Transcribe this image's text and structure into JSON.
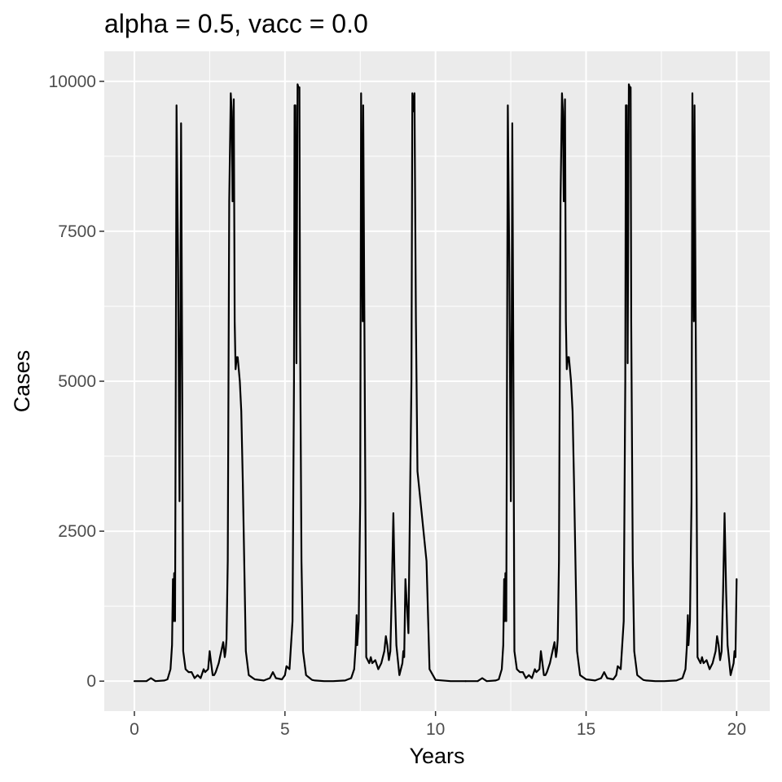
{
  "chart_data": {
    "type": "line",
    "title": "alpha = 0.5, vacc = 0.0",
    "xlabel": "Years",
    "ylabel": "Cases",
    "xlim": [
      -1,
      21.1
    ],
    "ylim": [
      -500,
      10500
    ],
    "x_ticks": [
      0,
      5,
      10,
      15,
      20
    ],
    "x_tick_labels": [
      "0",
      "5",
      "10",
      "15",
      "20"
    ],
    "y_ticks": [
      0,
      2500,
      5000,
      7500,
      10000
    ],
    "y_tick_labels": [
      "0",
      "2500",
      "5000",
      "7500",
      "10000"
    ],
    "grid": true,
    "legend": "none",
    "colors": {
      "panel": "#ebebeb",
      "grid": "#ffffff",
      "line": "#000000",
      "tick": "#333333"
    },
    "series": [
      {
        "x": [
          0.0,
          0.4,
          0.55,
          0.7,
          1.0,
          1.1,
          1.2,
          1.25,
          1.28,
          1.3,
          1.32,
          1.35,
          1.38,
          1.4,
          1.45,
          1.5,
          1.53,
          1.55,
          1.58,
          1.62,
          1.7,
          1.8,
          1.9,
          2.0,
          2.1,
          2.2,
          2.3,
          2.35,
          2.45,
          2.5,
          2.55,
          2.6,
          2.65,
          2.7,
          2.8,
          2.95,
          3.0,
          3.03,
          3.06,
          3.1,
          3.15,
          3.2,
          3.23,
          3.26,
          3.3,
          3.33,
          3.36,
          3.4,
          3.43,
          3.5,
          3.55,
          3.6,
          3.7,
          3.8,
          4.0,
          4.3,
          4.5,
          4.6,
          4.7,
          4.9,
          5.0,
          5.05,
          5.15,
          5.25,
          5.3,
          5.32,
          5.35,
          5.38,
          5.42,
          5.45,
          5.48,
          5.5,
          5.55,
          5.6,
          5.7,
          5.9,
          6.0,
          6.3,
          6.6,
          7.0,
          7.2,
          7.3,
          7.35,
          7.38,
          7.4,
          7.45,
          7.5,
          7.53,
          7.55,
          7.58,
          7.6,
          7.7,
          7.8,
          7.85,
          7.9,
          8.0,
          8.1,
          8.2,
          8.3,
          8.35,
          8.4,
          8.45,
          8.5,
          8.55,
          8.6,
          8.65,
          8.7,
          8.8,
          8.9,
          8.93,
          8.96,
          9.0,
          9.1,
          9.2,
          9.23,
          9.27,
          9.3,
          9.35,
          9.4,
          9.5,
          9.6,
          9.7,
          9.8,
          10.0,
          10.5,
          11.0
        ],
        "y": [
          0,
          0,
          50,
          0,
          10,
          30,
          200,
          600,
          1700,
          1000,
          1800,
          1000,
          6000,
          9600,
          7000,
          3000,
          6000,
          9300,
          6000,
          500,
          200,
          150,
          150,
          50,
          100,
          50,
          200,
          150,
          200,
          500,
          300,
          100,
          100,
          150,
          300,
          650,
          400,
          500,
          700,
          2000,
          8000,
          9800,
          9500,
          8000,
          9700,
          6000,
          5200,
          5400,
          5400,
          5000,
          4500,
          3300,
          500,
          100,
          30,
          10,
          50,
          150,
          50,
          30,
          100,
          250,
          200,
          1000,
          5000,
          9600,
          9600,
          5300,
          9950,
          9900,
          9900,
          6000,
          2000,
          500,
          100,
          20,
          10,
          0,
          0,
          10,
          50,
          200,
          600,
          1100,
          600,
          1000,
          3000,
          9800,
          8000,
          6000,
          9600,
          400,
          300,
          400,
          300,
          350,
          200,
          300,
          500,
          750,
          600,
          350,
          500,
          1500,
          2800,
          1500,
          600,
          100,
          300,
          500,
          400,
          1700,
          800,
          5000,
          9800,
          9500,
          9800,
          6000,
          3500,
          3000,
          2500,
          2000,
          200,
          20,
          0,
          0
        ]
      },
      {
        "x": [
          11.0,
          11.4,
          11.55,
          11.7,
          12.0,
          12.1,
          12.2,
          12.25,
          12.28,
          12.3,
          12.32,
          12.35,
          12.38,
          12.4,
          12.45,
          12.5,
          12.53,
          12.55,
          12.58,
          12.62,
          12.7,
          12.8,
          12.9,
          13.0,
          13.1,
          13.2,
          13.3,
          13.35,
          13.45,
          13.5,
          13.55,
          13.6,
          13.65,
          13.7,
          13.8,
          13.95,
          14.0,
          14.03,
          14.06,
          14.1,
          14.15,
          14.2,
          14.23,
          14.26,
          14.3,
          14.33,
          14.36,
          14.4,
          14.43,
          14.5,
          14.55,
          14.6,
          14.7,
          14.8,
          15.0,
          15.3,
          15.5,
          15.6,
          15.7,
          15.9,
          16.0,
          16.05,
          16.15,
          16.25,
          16.3,
          16.32,
          16.35,
          16.38,
          16.42,
          16.45,
          16.48,
          16.5,
          16.55,
          16.6,
          16.7,
          16.9,
          17.0,
          17.3,
          17.6,
          18.0,
          18.2,
          18.3,
          18.35,
          18.38,
          18.4,
          18.45,
          18.5,
          18.53,
          18.55,
          18.58,
          18.6,
          18.7,
          18.8,
          18.85,
          18.9,
          19.0,
          19.1,
          19.2,
          19.3,
          19.35,
          19.4,
          19.45,
          19.5,
          19.55,
          19.6,
          19.65,
          19.7,
          19.8,
          19.9,
          19.93,
          19.96,
          20.0
        ],
        "y": [
          0,
          0,
          50,
          0,
          10,
          30,
          200,
          600,
          1700,
          1000,
          1800,
          1000,
          6000,
          9600,
          7000,
          3000,
          6000,
          9300,
          6000,
          500,
          200,
          150,
          150,
          50,
          100,
          50,
          200,
          150,
          200,
          500,
          300,
          100,
          100,
          150,
          300,
          650,
          400,
          500,
          700,
          2000,
          8000,
          9800,
          9500,
          8000,
          9700,
          6000,
          5200,
          5400,
          5400,
          5000,
          4500,
          3300,
          500,
          100,
          30,
          10,
          50,
          150,
          50,
          30,
          100,
          250,
          200,
          1000,
          5000,
          9600,
          9600,
          5300,
          9950,
          9900,
          9900,
          6000,
          2000,
          500,
          100,
          20,
          10,
          0,
          0,
          10,
          50,
          200,
          600,
          1100,
          600,
          1000,
          3000,
          9800,
          8000,
          6000,
          9600,
          400,
          300,
          400,
          300,
          350,
          200,
          300,
          500,
          750,
          600,
          350,
          500,
          1500,
          2800,
          1500,
          600,
          100,
          300,
          500,
          400,
          1700
        ]
      }
    ]
  }
}
